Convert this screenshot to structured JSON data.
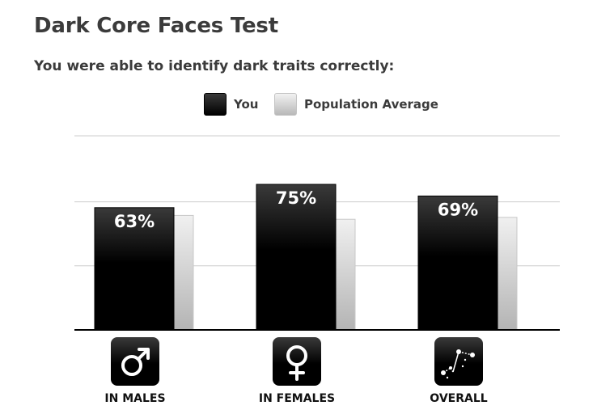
{
  "title": "Dark Core Faces Test",
  "subtitle": "You were able to identify dark traits correctly:",
  "legend": {
    "you": "You",
    "population": "Population Average"
  },
  "colors": {
    "you_top": "#3a3a3a",
    "you_bottom": "#000000",
    "pop_top": "#ececec",
    "pop_bottom": "#b4b4b4",
    "gridline": "#cccccc",
    "baseline": "#000000",
    "value_text": "#ffffff"
  },
  "icons": [
    "male-symbol-icon",
    "female-symbol-icon",
    "line-chart-icon"
  ],
  "chart_data": {
    "type": "bar",
    "categories": [
      "IN MALES",
      "IN FEMALES",
      "OVERALL"
    ],
    "series": [
      {
        "name": "You",
        "values": [
          63,
          75,
          69
        ],
        "labels": [
          "63%",
          "75%",
          "69%"
        ]
      },
      {
        "name": "Population Average",
        "values": [
          59,
          57,
          58
        ]
      }
    ],
    "ylim": [
      0,
      100
    ],
    "gridlines": [
      33,
      66,
      100
    ],
    "grid": true,
    "legend_position": "top-center",
    "xlabel": "",
    "ylabel": ""
  }
}
